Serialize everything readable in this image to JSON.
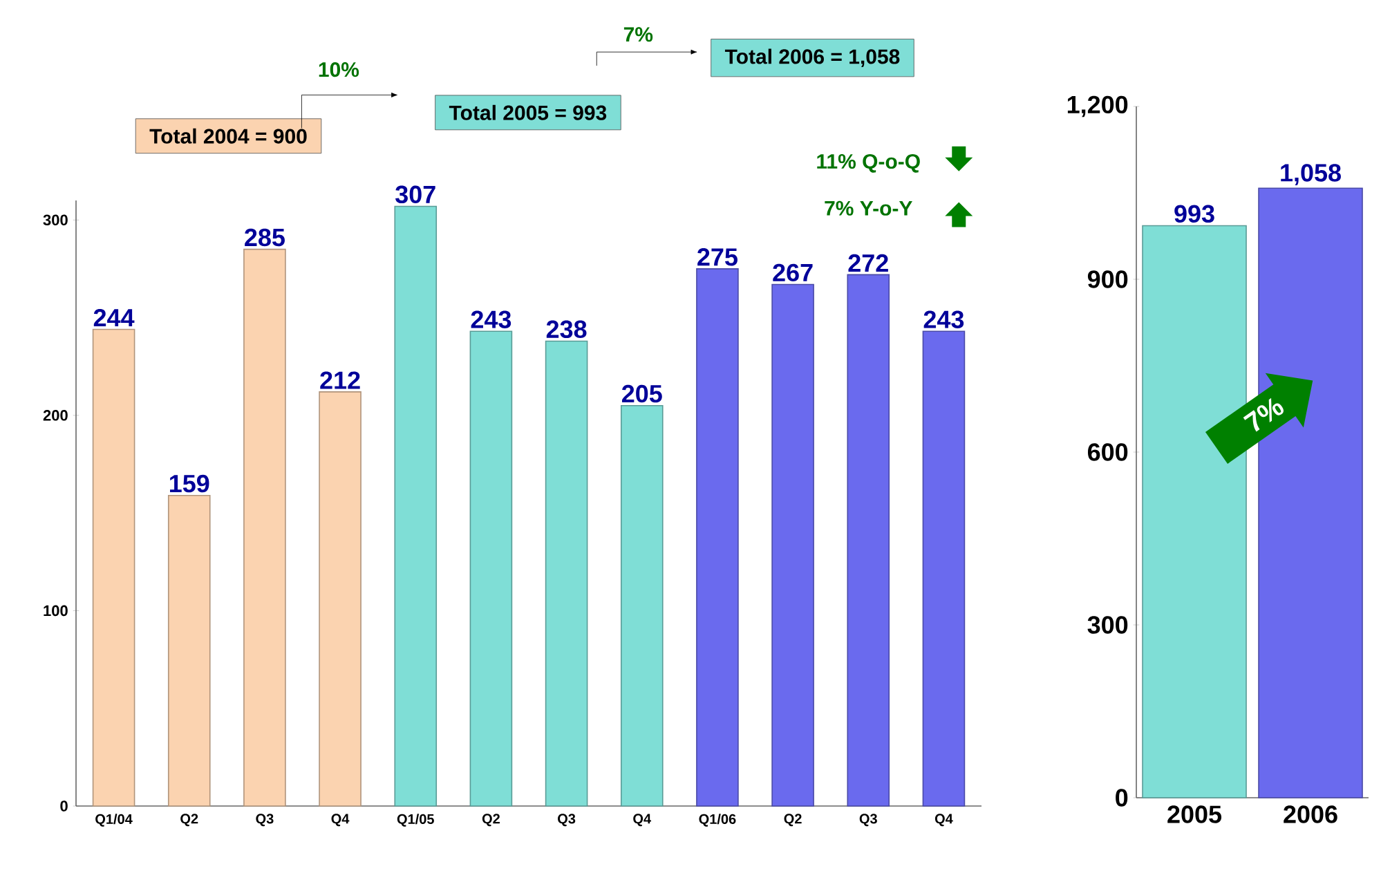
{
  "chart_data": [
    {
      "type": "bar",
      "categories": [
        "Q1/04",
        "Q2",
        "Q3",
        "Q4",
        "Q1/05",
        "Q2",
        "Q3",
        "Q4",
        "Q1/06",
        "Q2",
        "Q3",
        "Q4"
      ],
      "values": [
        244,
        159,
        285,
        212,
        307,
        243,
        238,
        205,
        275,
        267,
        272,
        243
      ],
      "colors": [
        "#fbd3b0",
        "#fbd3b0",
        "#fbd3b0",
        "#fbd3b0",
        "#7fded6",
        "#7fded6",
        "#7fded6",
        "#7fded6",
        "#6a6aee",
        "#6a6aee",
        "#6a6aee",
        "#6a6aee"
      ],
      "ylim": [
        0,
        310
      ],
      "yticks": [
        0,
        100,
        200,
        300
      ],
      "data_labels": true,
      "annotations": [
        "Total 2004 = 900",
        "10%",
        "Total 2005 = 993",
        "7%",
        "Total 2006 = 1,058",
        "11% Q-o-Q",
        "7% Y-o-Y"
      ]
    },
    {
      "type": "bar",
      "categories": [
        "2005",
        "2006"
      ],
      "values": [
        993,
        1058
      ],
      "colors": [
        "#7fded6",
        "#6a6aee"
      ],
      "ylim": [
        0,
        1200
      ],
      "yticks": [
        0,
        300,
        600,
        900,
        {
          "value": 1200,
          "label": "1,200"
        }
      ],
      "value_labels": [
        "993",
        "1,058"
      ],
      "annotations": [
        "7%"
      ]
    }
  ]
}
